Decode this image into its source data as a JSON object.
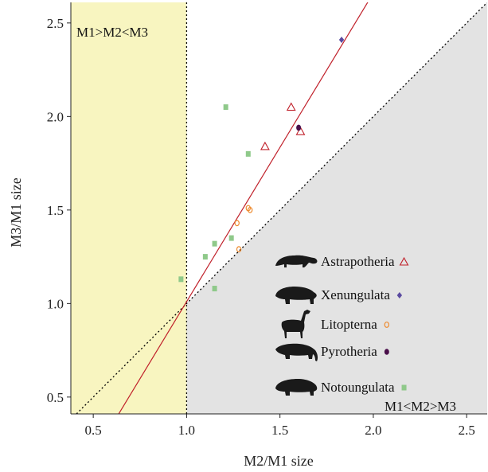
{
  "chart_data": {
    "type": "scatter",
    "xlabel": "M2/M1 size",
    "ylabel": "M3/M1 size",
    "xlim": [
      0.38,
      2.61
    ],
    "ylim": [
      0.41,
      2.61
    ],
    "x_ticks": [
      0.5,
      1.0,
      1.5,
      2.0,
      2.5
    ],
    "x_tick_labels": [
      "0.5",
      "1.0",
      "1.5",
      "2.0",
      "2.5"
    ],
    "y_ticks": [
      0.5,
      1.0,
      1.5,
      2.0,
      2.5
    ],
    "y_tick_labels": [
      "0.5",
      "1.0",
      "1.5",
      "2.0",
      "2.5"
    ],
    "grid": false,
    "regions": [
      {
        "label": "M1>M2<M3",
        "kind": "x_less_than_1",
        "color": "#f8f5c0"
      },
      {
        "label": "M1<M2>M3",
        "kind": "below_identity_x_gt_1",
        "color": "#e3e3e3"
      }
    ],
    "reference_lines": [
      {
        "kind": "identity",
        "style": "dotted",
        "color": "#000000"
      },
      {
        "kind": "vertical",
        "x": 1.0,
        "style": "dotted",
        "color": "#000000"
      },
      {
        "kind": "regression",
        "slope": 1.65,
        "intercept": -0.64,
        "style": "solid",
        "color": "#c0202a"
      }
    ],
    "legend_position": "bottom-right",
    "series": [
      {
        "name": "Astrapotheria",
        "marker": "open-triangle",
        "color": "#c0202a",
        "points": [
          [
            1.42,
            1.84
          ],
          [
            1.56,
            2.05
          ],
          [
            1.61,
            1.92
          ]
        ]
      },
      {
        "name": "Xenungulata",
        "marker": "diamond",
        "color": "#5a4aa0",
        "points": [
          [
            1.83,
            2.41
          ]
        ]
      },
      {
        "name": "Litopterna",
        "marker": "open-circle",
        "color": "#ee8a2e",
        "points": [
          [
            1.27,
            1.43
          ],
          [
            1.33,
            1.51
          ],
          [
            1.34,
            1.5
          ],
          [
            1.28,
            1.29
          ]
        ]
      },
      {
        "name": "Pyrotheria",
        "marker": "filled-circle",
        "color": "#4a0f4a",
        "points": [
          [
            1.6,
            1.94
          ]
        ]
      },
      {
        "name": "Notoungulata",
        "marker": "square",
        "color": "#8fc98a",
        "points": [
          [
            1.21,
            2.05
          ],
          [
            1.33,
            1.8
          ],
          [
            1.15,
            1.32
          ],
          [
            1.24,
            1.35
          ],
          [
            1.1,
            1.25
          ],
          [
            1.15,
            1.08
          ],
          [
            0.97,
            1.13
          ]
        ]
      }
    ]
  }
}
